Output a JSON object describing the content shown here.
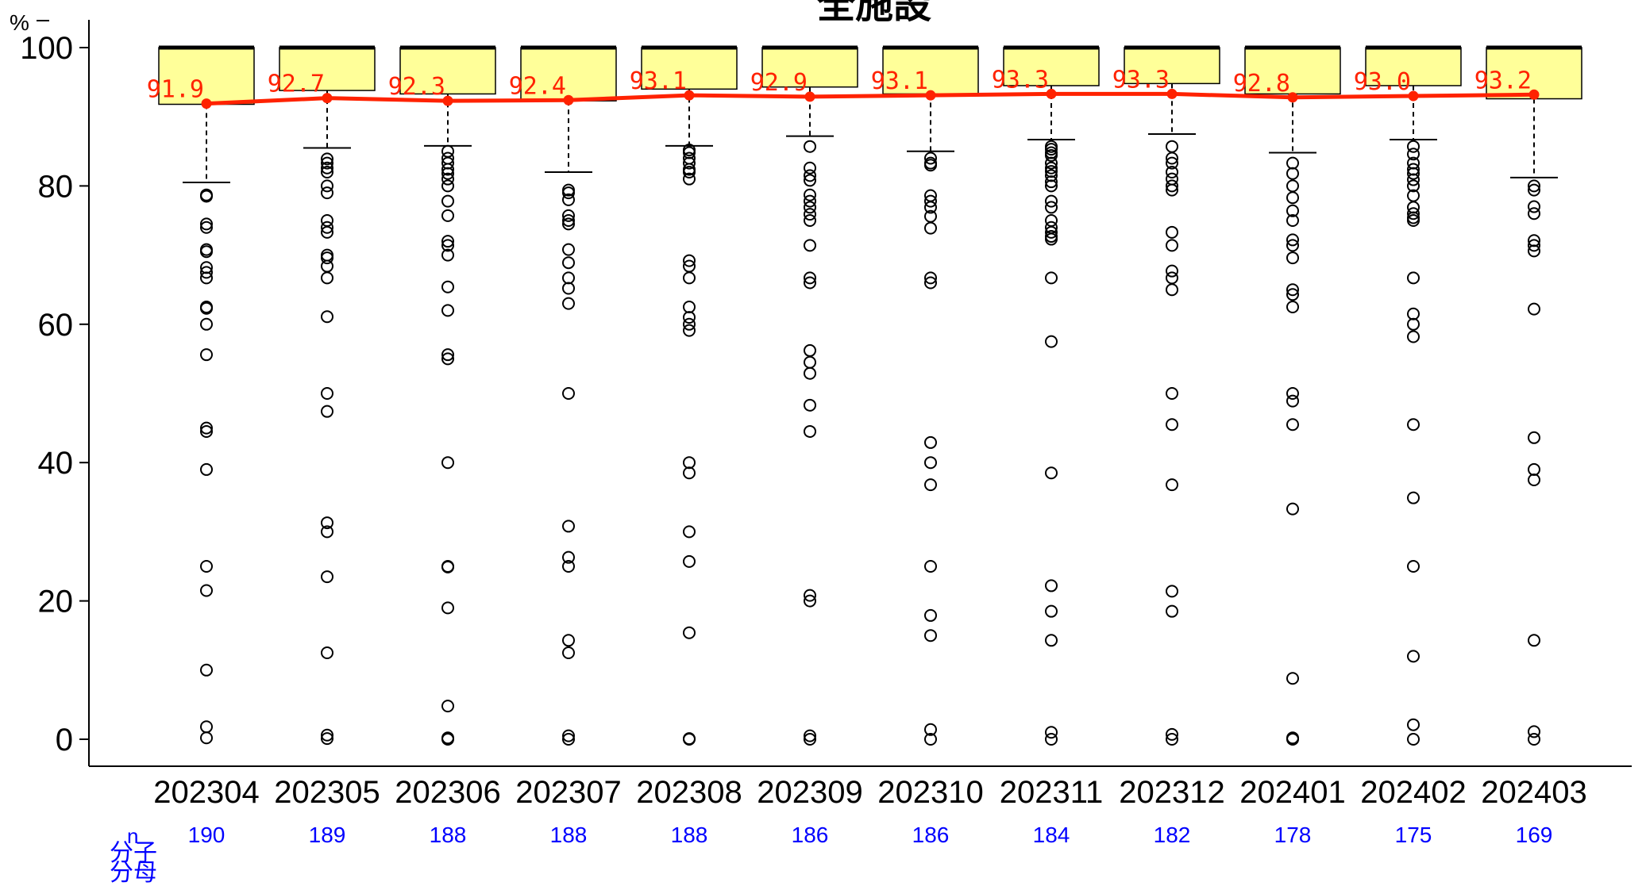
{
  "chart_data": {
    "type": "box",
    "title": "全施設",
    "ylabel": "%",
    "ylim": [
      0,
      100
    ],
    "yticks": [
      0,
      20,
      40,
      60,
      80,
      100
    ],
    "categories": [
      "202304",
      "202305",
      "202306",
      "202307",
      "202308",
      "202309",
      "202310",
      "202311",
      "202312",
      "202401",
      "202402",
      "202403"
    ],
    "n_label": "n",
    "n_values": [
      190,
      189,
      188,
      188,
      188,
      186,
      186,
      184,
      182,
      178,
      175,
      169
    ],
    "legend_text": "分子\n分母",
    "means": [
      91.9,
      92.7,
      92.3,
      92.4,
      93.1,
      92.9,
      93.1,
      93.3,
      93.3,
      92.8,
      93.0,
      93.2
    ],
    "mean_labels": [
      "91.9",
      "92.7",
      "92.3",
      "92.4",
      "93.1",
      "92.9",
      "93.1",
      "93.3",
      "93.3",
      "92.8",
      "93.0",
      "93.2"
    ],
    "boxes": [
      {
        "q1": 91.8,
        "median": 100,
        "q3": 100,
        "whisker_low": 80.5,
        "whisker_high": 100
      },
      {
        "q1": 93.8,
        "median": 100,
        "q3": 100,
        "whisker_low": 85.5,
        "whisker_high": 100
      },
      {
        "q1": 93.3,
        "median": 100,
        "q3": 100,
        "whisker_low": 85.8,
        "whisker_high": 100
      },
      {
        "q1": 92.3,
        "median": 100,
        "q3": 100,
        "whisker_low": 82.0,
        "whisker_high": 100
      },
      {
        "q1": 94.0,
        "median": 100,
        "q3": 100,
        "whisker_low": 85.8,
        "whisker_high": 100
      },
      {
        "q1": 94.3,
        "median": 100,
        "q3": 100,
        "whisker_low": 87.2,
        "whisker_high": 100
      },
      {
        "q1": 93.3,
        "median": 100,
        "q3": 100,
        "whisker_low": 85.0,
        "whisker_high": 100
      },
      {
        "q1": 94.5,
        "median": 100,
        "q3": 100,
        "whisker_low": 86.7,
        "whisker_high": 100
      },
      {
        "q1": 94.8,
        "median": 100,
        "q3": 100,
        "whisker_low": 87.5,
        "whisker_high": 100
      },
      {
        "q1": 93.3,
        "median": 100,
        "q3": 100,
        "whisker_low": 84.8,
        "whisker_high": 100
      },
      {
        "q1": 94.5,
        "median": 100,
        "q3": 100,
        "whisker_low": 86.7,
        "whisker_high": 100
      },
      {
        "q1": 92.6,
        "median": 100,
        "q3": 100,
        "whisker_low": 81.2,
        "whisker_high": 100
      }
    ],
    "outliers": [
      [
        78.5,
        78.7,
        74.5,
        74.0,
        70.8,
        70.5,
        68.2,
        67.5,
        66.7,
        62.5,
        62.3,
        60.0,
        55.6,
        45.0,
        44.5,
        39.0,
        25.0,
        21.5,
        10.0,
        1.8,
        0.2
      ],
      [
        83.9,
        83.3,
        82.6,
        82.0,
        80.0,
        79.0,
        75.0,
        74.0,
        73.3,
        70.0,
        69.6,
        68.4,
        66.7,
        61.1,
        50.0,
        47.4,
        31.3,
        30.0,
        23.5,
        12.5,
        0.6,
        0.1
      ],
      [
        85.0,
        84.0,
        83.3,
        82.4,
        81.8,
        81.0,
        80.0,
        77.8,
        75.7,
        72.0,
        71.4,
        70.0,
        65.4,
        62.0,
        55.6,
        55.0,
        40.0,
        25.0,
        24.9,
        19.0,
        4.8,
        0.2,
        0.0
      ],
      [
        79.4,
        79.0,
        78.0,
        75.7,
        75.0,
        74.5,
        70.8,
        68.9,
        66.7,
        65.2,
        63.0,
        50.0,
        30.8,
        26.3,
        25.0,
        14.3,
        12.5,
        0.5,
        0.0
      ],
      [
        85.2,
        84.8,
        84.0,
        83.3,
        82.4,
        82.0,
        81.0,
        69.2,
        68.4,
        66.7,
        62.5,
        61.0,
        60.0,
        59.1,
        40.0,
        38.5,
        30.0,
        25.7,
        15.4,
        0.1,
        0.0
      ],
      [
        85.7,
        82.6,
        81.5,
        80.8,
        78.7,
        77.8,
        76.9,
        75.9,
        75.0,
        71.4,
        66.7,
        66.0,
        56.2,
        54.5,
        52.9,
        48.3,
        44.5,
        20.8,
        20.0,
        0.5,
        0.0
      ],
      [
        84.0,
        83.3,
        83.0,
        78.6,
        77.8,
        76.9,
        75.6,
        73.9,
        66.7,
        66.0,
        42.9,
        40.0,
        36.8,
        25.0,
        17.9,
        15.0,
        1.4,
        0.0
      ],
      [
        85.7,
        85.3,
        84.8,
        84.4,
        83.3,
        82.6,
        82.1,
        81.5,
        80.6,
        80.0,
        77.8,
        76.9,
        75.0,
        74.0,
        73.3,
        72.7,
        72.3,
        66.7,
        57.5,
        38.5,
        22.2,
        18.5,
        14.3,
        1.0,
        0.0
      ],
      [
        85.7,
        84.0,
        83.3,
        82.0,
        81.0,
        80.0,
        79.4,
        73.3,
        71.4,
        67.7,
        66.7,
        65.0,
        50.0,
        45.5,
        36.8,
        21.4,
        18.5,
        0.7,
        0.0
      ],
      [
        83.3,
        81.8,
        80.0,
        78.3,
        76.4,
        75.0,
        72.2,
        71.4,
        69.6,
        65.0,
        64.3,
        62.5,
        50.0,
        48.9,
        45.5,
        33.3,
        8.8,
        0.2,
        0.0
      ],
      [
        85.7,
        84.6,
        83.3,
        82.4,
        81.8,
        80.9,
        80.0,
        78.6,
        76.9,
        76.0,
        75.4,
        75.0,
        66.7,
        61.5,
        60.0,
        58.2,
        45.5,
        34.9,
        25.0,
        12.0,
        2.1,
        0.0
      ],
      [
        80.0,
        79.4,
        77.0,
        76.0,
        72.1,
        71.4,
        70.6,
        62.2,
        43.6,
        39.0,
        37.5,
        14.3,
        1.1,
        0.0
      ]
    ]
  }
}
